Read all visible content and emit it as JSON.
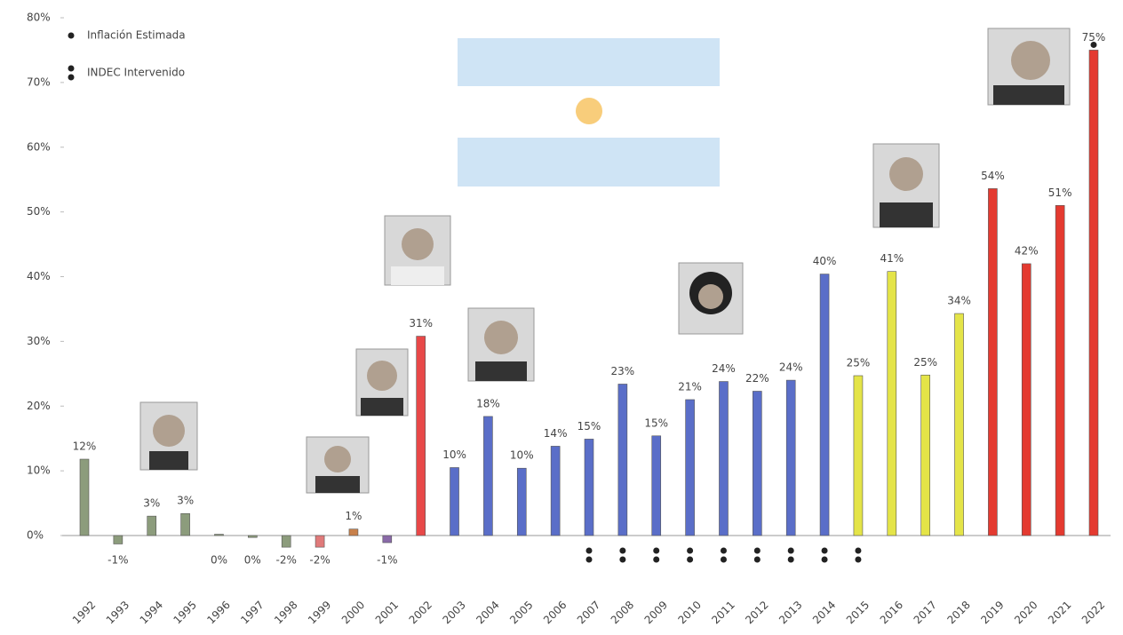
{
  "chart_data": {
    "type": "bar",
    "categories": [
      "1992",
      "1993",
      "1994",
      "1995",
      "1996",
      "1997",
      "1998",
      "1999",
      "2000",
      "2001",
      "2002",
      "2003",
      "2004",
      "2005",
      "2006",
      "2007",
      "2008",
      "2009",
      "2010",
      "2011",
      "2012",
      "2013",
      "2014",
      "2015",
      "2016",
      "2017",
      "2018",
      "2019",
      "2020",
      "2021",
      "2022"
    ],
    "values": [
      11.8,
      -1.3,
      3.0,
      3.4,
      0.2,
      -0.3,
      -1.8,
      -1.8,
      1.0,
      -1.1,
      30.8,
      10.5,
      18.4,
      10.4,
      13.8,
      14.9,
      23.4,
      15.4,
      21.0,
      23.8,
      22.3,
      24.0,
      40.4,
      24.7,
      40.8,
      24.8,
      34.3,
      53.6,
      42.0,
      51.0,
      75.0
    ],
    "value_labels": [
      "12%",
      "-1%",
      "3%",
      "3%",
      "0%",
      "0%",
      "-2%",
      "-2%",
      "1%",
      "-1%",
      "31%",
      "10%",
      "18%",
      "10%",
      "14%",
      "15%",
      "23%",
      "15%",
      "21%",
      "24%",
      "22%",
      "24%",
      "40%",
      "25%",
      "41%",
      "25%",
      "34%",
      "54%",
      "42%",
      "51%",
      "75%"
    ],
    "colors": [
      "#8c9c7c",
      "#8c9c7c",
      "#8c9c7c",
      "#8c9c7c",
      "#8c9c7c",
      "#8c9c7c",
      "#8c9c7c",
      "#e07a7a",
      "#c8804a",
      "#8a6aa8",
      "#e84848",
      "#5a6ec8",
      "#5a6ec8",
      "#5a6ec8",
      "#5a6ec8",
      "#5a6ec8",
      "#5a6ec8",
      "#5a6ec8",
      "#5a6ec8",
      "#5a6ec8",
      "#5a6ec8",
      "#5a6ec8",
      "#5a6ec8",
      "#e4e448",
      "#e4e448",
      "#e4e448",
      "#e4e448",
      "#e43a30",
      "#e43a30",
      "#e43a30",
      "#e43a30"
    ],
    "markers": [
      null,
      null,
      null,
      null,
      null,
      null,
      null,
      null,
      null,
      null,
      null,
      null,
      null,
      null,
      null,
      "double",
      "double",
      "double",
      "double",
      "double",
      "double",
      "double",
      "double",
      "double",
      null,
      null,
      null,
      null,
      null,
      null,
      "single"
    ],
    "legend": [
      {
        "marker": "single",
        "label": "Inflación Estimada"
      },
      {
        "marker": "double",
        "label": "INDEC Intervenido"
      }
    ],
    "ylim": [
      0,
      80
    ],
    "yticks": [
      {
        "value": 0,
        "label": "0%"
      },
      {
        "value": 10,
        "label": "10%"
      },
      {
        "value": 20,
        "label": "20%"
      },
      {
        "value": 30,
        "label": "30%"
      },
      {
        "value": 40,
        "label": "40%"
      },
      {
        "value": 50,
        "label": "50%"
      },
      {
        "value": 60,
        "label": "60%"
      },
      {
        "value": 70,
        "label": "70%"
      },
      {
        "value": 80,
        "label": "80%"
      }
    ]
  }
}
